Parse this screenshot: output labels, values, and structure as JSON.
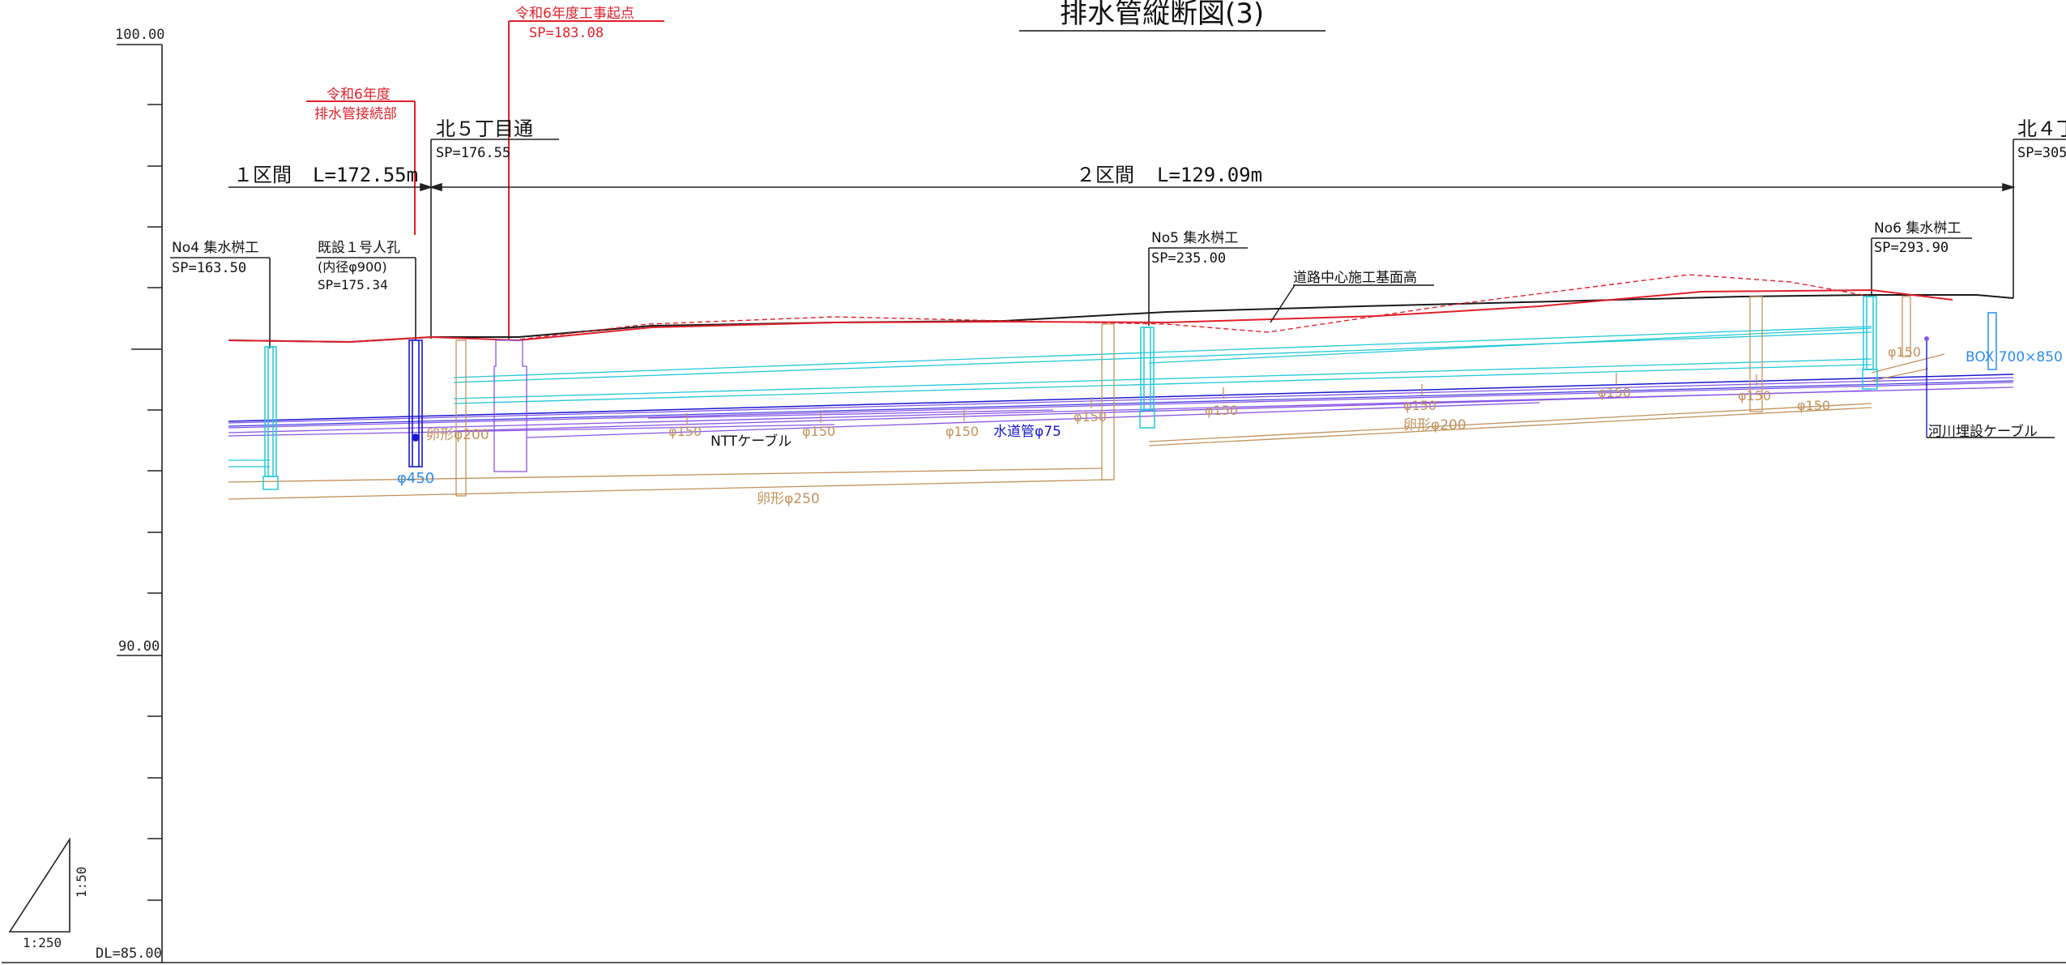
{
  "title": "排水管縦断図(3)",
  "axis": {
    "top": "100.00",
    "mid": "90.00",
    "bottom": "DL=85.00"
  },
  "scale": {
    "horizontal": "1:250",
    "vertical": "1:50"
  },
  "red_notes": {
    "connection_line1": "令和6年度",
    "connection_line2": "排水管接続部",
    "start_line1": "令和6年度工事起点",
    "start_line2": "SP=183.08"
  },
  "streets": {
    "kita5": {
      "name": "北５丁目通",
      "sp": "SP=176.55"
    },
    "kita4": {
      "name": "北４丁",
      "sp": "SP=305"
    }
  },
  "sections": {
    "s1_name": "１区間",
    "s1_len": "L=172.55m",
    "s2_name": "２区間",
    "s2_len": "L=129.09m"
  },
  "structures": {
    "no4": {
      "name": "No4 集水桝工",
      "sp": "SP=163.50"
    },
    "mh1": {
      "name": "既設１号人孔",
      "detail": "(内径φ900)",
      "sp": "SP=175.34"
    },
    "no5": {
      "name": "No5 集水桝工",
      "sp": "SP=235.00"
    },
    "no6": {
      "name": "No6 集水桝工",
      "sp": "SP=293.90"
    }
  },
  "road_label": "道路中心施工基面高",
  "pipe_labels": {
    "egg200_a": "卵形φ200",
    "phi450": "φ450",
    "ntt": "NTTケーブル",
    "egg250": "卵形φ250",
    "water": "水道管φ75",
    "egg200_b": "卵形φ200",
    "box": "BOX 700×850",
    "river": "河川埋設ケーブル",
    "phi150": "φ150"
  },
  "colors": {
    "black": "#1a1a1a",
    "red": "#e0202a",
    "cyan": "#22c8d8",
    "blue": "#1818d0",
    "purple": "#8a55e6",
    "orange": "#c2915b",
    "light_blue": "#2a8cf0"
  }
}
